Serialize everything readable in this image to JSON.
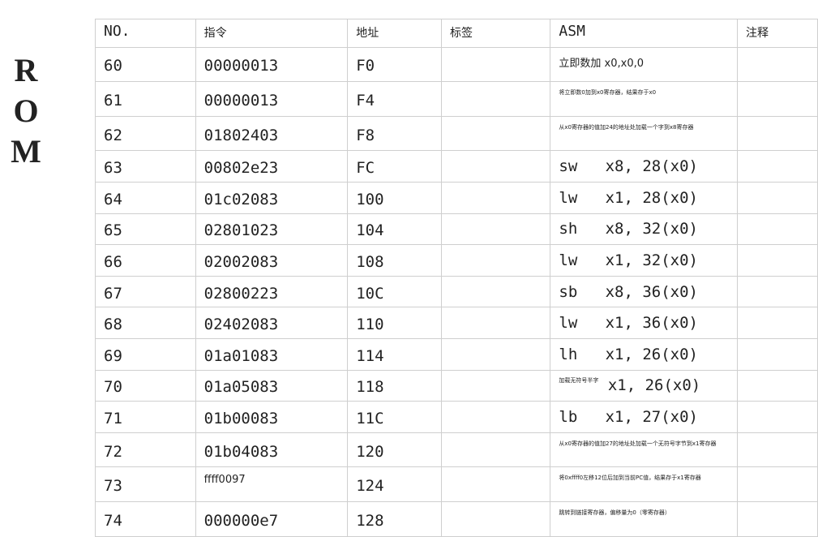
{
  "title": [
    "R",
    "O",
    "M"
  ],
  "table": {
    "header": [
      "NO.",
      "指令",
      "地址",
      "标签",
      "ASM",
      "注释"
    ],
    "rows": [
      {
        "no": 60,
        "instr": "00000013",
        "addr": "F0",
        "asm_plain": "立即数加 x0,x0,0"
      },
      {
        "no": 61,
        "instr": "00000013",
        "addr": "F4",
        "asm_note": "将立即数0加到x0寄存器，结果存于x0"
      },
      {
        "no": 62,
        "instr": "01802403",
        "addr": "F8",
        "asm_note": "从x0寄存器的值加24的地址处加载一个字到x8寄存器"
      },
      {
        "no": 63,
        "instr": "00802e23",
        "addr": "FC",
        "asm": "sw   x8, 28(x0)"
      },
      {
        "no": 64,
        "instr": "01c02083",
        "addr": "100",
        "asm": "lw   x1, 28(x0)"
      },
      {
        "no": 65,
        "instr": "02801023",
        "addr": "104",
        "asm": "sh   x8, 32(x0)"
      },
      {
        "no": 66,
        "instr": "02002083",
        "addr": "108",
        "asm": "lw   x1, 32(x0)"
      },
      {
        "no": 67,
        "instr": "02800223",
        "addr": "10C",
        "asm": "sb   x8, 36(x0)"
      },
      {
        "no": 68,
        "instr": "02402083",
        "addr": "110",
        "asm": "lw   x1, 36(x0)"
      },
      {
        "no": 69,
        "instr": "01a01083",
        "addr": "114",
        "asm": "lh   x1, 26(x0)"
      },
      {
        "no": 70,
        "instr": "01a05083",
        "addr": "118",
        "asm_note": "加载无符号半字",
        "asm": "x1, 26(x0)"
      },
      {
        "no": 71,
        "instr": "01b00083",
        "addr": "11C",
        "asm": "lb   x1, 27(x0)"
      },
      {
        "no": 72,
        "instr": "01b04083",
        "addr": "120",
        "asm_note": "从x0寄存器的值加27的地址处加载一个无符号字节到x1寄存器"
      },
      {
        "no": 73,
        "instr_plain": "ffff0097",
        "addr": "124",
        "asm_note": "将0xffff0左移12位后加到当前PC值，结果存于x1寄存器"
      },
      {
        "no": 74,
        "instr": "000000e7",
        "addr": "128",
        "asm_note": "跳转到链接寄存器，偏移量为0（零寄存器）"
      }
    ]
  }
}
